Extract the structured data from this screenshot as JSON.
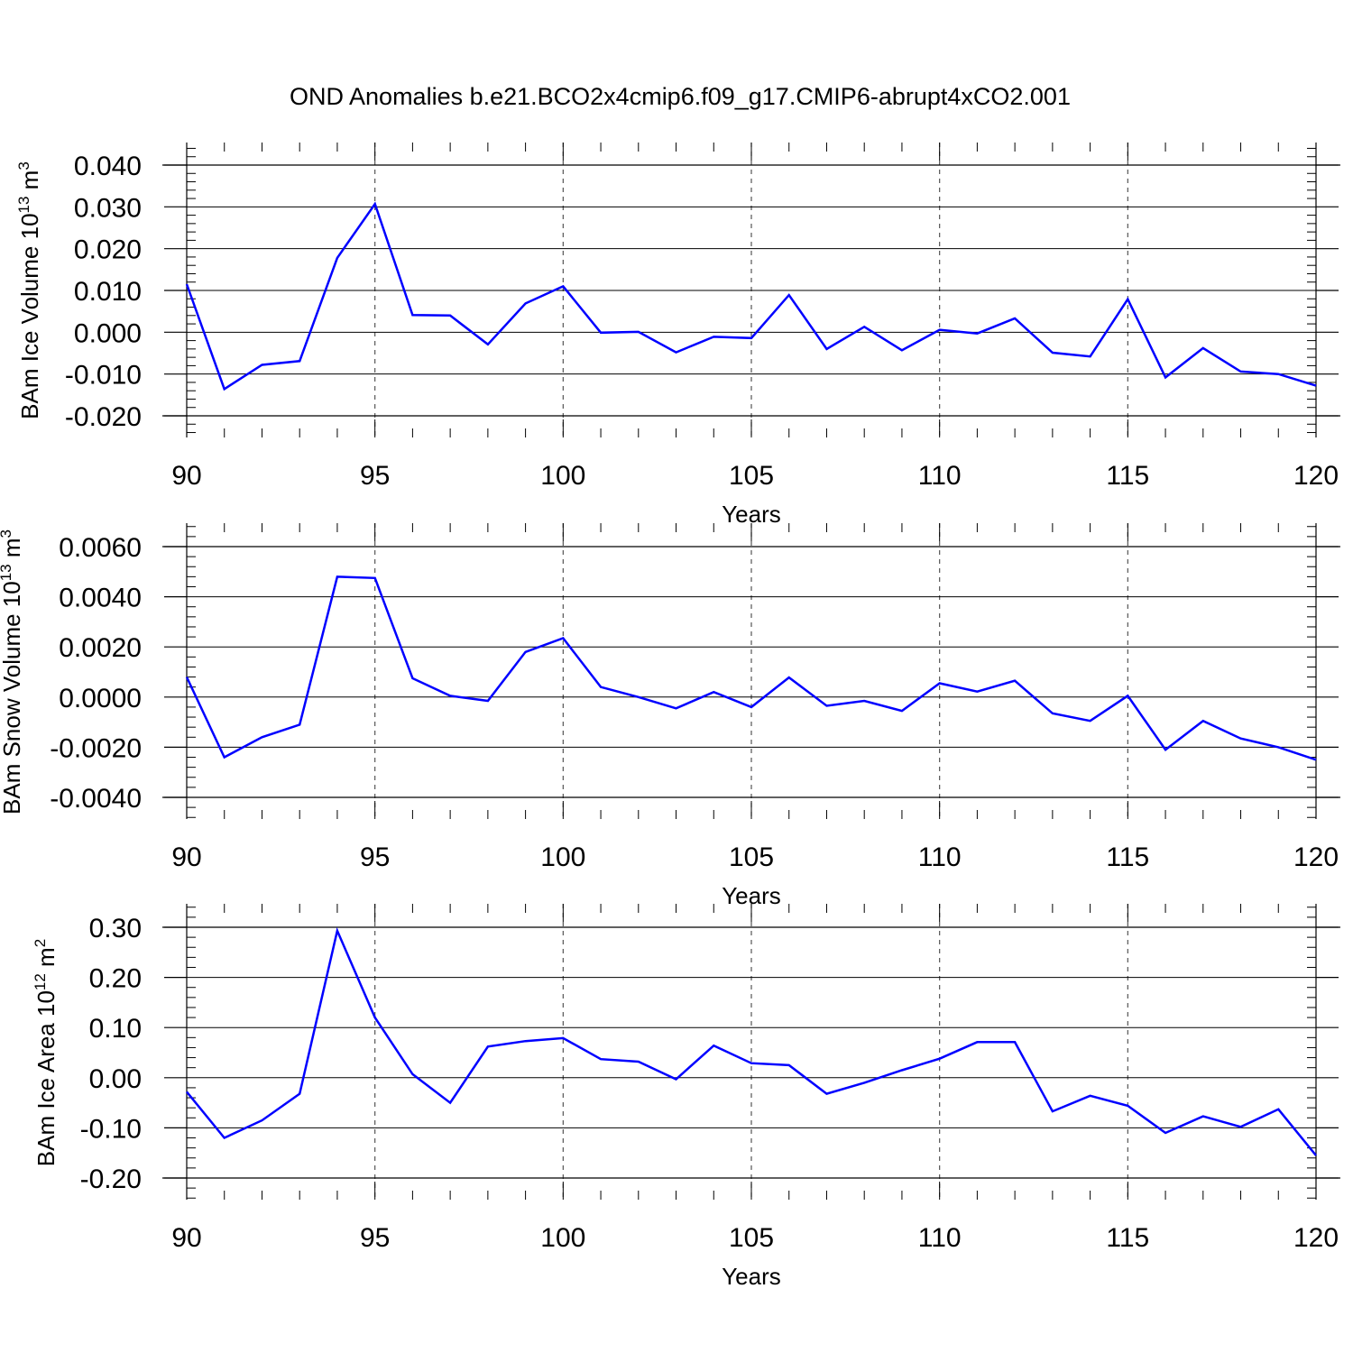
{
  "title": "OND Anomalies b.e21.BCO2x4cmip6.f09_g17.CMIP6-abrupt4xCO2.001",
  "colors": {
    "line": "#0000ff",
    "axis": "#000000",
    "grid": "#555555"
  },
  "chart_data": [
    {
      "type": "line",
      "xlabel": "Years",
      "ylabel": "BAm Ice Volume 10",
      "ylabel_exp": "13",
      "ylabel_unit": "m",
      "ylabel_unit_exp": "3",
      "xlim": [
        90,
        120
      ],
      "ylim": [
        -0.02,
        0.04
      ],
      "x_ticks": [
        90,
        95,
        100,
        105,
        110,
        115,
        120
      ],
      "y_ticks": [
        -0.02,
        -0.01,
        0.0,
        0.01,
        0.02,
        0.03,
        0.04
      ],
      "y_tick_labels": [
        "-0.020",
        "-0.010",
        "0.000",
        "0.010",
        "0.020",
        "0.030",
        "0.040"
      ],
      "grid_x": [
        95,
        100,
        105,
        110,
        115
      ],
      "x": [
        90,
        91,
        92,
        93,
        94,
        95,
        96,
        97,
        98,
        99,
        100,
        101,
        102,
        103,
        104,
        105,
        106,
        107,
        108,
        109,
        110,
        111,
        112,
        113,
        114,
        115,
        116,
        117,
        118,
        119,
        120
      ],
      "series": [
        {
          "values": [
            0.0115,
            -0.0136,
            -0.0078,
            -0.0069,
            0.0178,
            0.0307,
            0.0041,
            0.004,
            -0.0029,
            0.0069,
            0.011,
            -0.0001,
            0.0001,
            -0.0048,
            -0.0011,
            -0.0014,
            0.0089,
            -0.004,
            0.0013,
            -0.0043,
            0.0006,
            -0.0003,
            0.0033,
            -0.0049,
            -0.0058,
            0.0079,
            -0.0108,
            -0.0038,
            -0.0094,
            -0.01,
            -0.0128
          ]
        }
      ]
    },
    {
      "type": "line",
      "xlabel": "Years",
      "ylabel": "BAm Snow Volume 10",
      "ylabel_exp": "13",
      "ylabel_unit": "m",
      "ylabel_unit_exp": "3",
      "xlim": [
        90,
        120
      ],
      "ylim": [
        -0.004,
        0.006
      ],
      "x_ticks": [
        90,
        95,
        100,
        105,
        110,
        115,
        120
      ],
      "y_ticks": [
        -0.004,
        -0.002,
        0.0,
        0.002,
        0.004,
        0.006
      ],
      "y_tick_labels": [
        "-0.0040",
        "-0.0020",
        "0.0000",
        "0.0020",
        "0.0040",
        "0.0060"
      ],
      "grid_x": [
        95,
        100,
        105,
        110,
        115
      ],
      "x": [
        90,
        91,
        92,
        93,
        94,
        95,
        96,
        97,
        98,
        99,
        100,
        101,
        102,
        103,
        104,
        105,
        106,
        107,
        108,
        109,
        110,
        111,
        112,
        113,
        114,
        115,
        116,
        117,
        118,
        119,
        120
      ],
      "series": [
        {
          "values": [
            0.0008,
            -0.0024,
            -0.0016,
            -0.0011,
            0.0048,
            0.00475,
            0.00075,
            5e-05,
            -0.00015,
            0.0018,
            0.00235,
            0.0004,
            0.0,
            -0.00045,
            0.0002,
            -0.0004,
            0.00078,
            -0.00035,
            -0.00015,
            -0.00055,
            0.00055,
            0.00022,
            0.00065,
            -0.00065,
            -0.00095,
            5e-05,
            -0.0021,
            -0.00095,
            -0.00165,
            -0.002,
            -0.0025
          ]
        }
      ]
    },
    {
      "type": "line",
      "xlabel": "Years",
      "ylabel": "BAm Ice Area 10",
      "ylabel_exp": "12",
      "ylabel_unit": "m",
      "ylabel_unit_exp": "2",
      "xlim": [
        90,
        120
      ],
      "ylim": [
        -0.2,
        0.3
      ],
      "x_ticks": [
        90,
        95,
        100,
        105,
        110,
        115,
        120
      ],
      "y_ticks": [
        -0.2,
        -0.1,
        0.0,
        0.1,
        0.2,
        0.3
      ],
      "y_tick_labels": [
        "-0.20",
        "-0.10",
        "0.00",
        "0.10",
        "0.20",
        "0.30"
      ],
      "grid_x": [
        95,
        100,
        105,
        110,
        115
      ],
      "x": [
        90,
        91,
        92,
        93,
        94,
        95,
        96,
        97,
        98,
        99,
        100,
        101,
        102,
        103,
        104,
        105,
        106,
        107,
        108,
        109,
        110,
        111,
        112,
        113,
        114,
        115,
        116,
        117,
        118,
        119,
        120
      ],
      "series": [
        {
          "values": [
            -0.028,
            -0.12,
            -0.085,
            -0.032,
            0.293,
            0.12,
            0.007,
            -0.05,
            0.062,
            0.073,
            0.079,
            0.037,
            0.032,
            -0.003,
            0.064,
            0.029,
            0.025,
            -0.032,
            -0.01,
            0.015,
            0.038,
            0.071,
            0.071,
            -0.067,
            -0.036,
            -0.056,
            -0.11,
            -0.077,
            -0.098,
            -0.063,
            -0.155
          ]
        }
      ]
    }
  ]
}
